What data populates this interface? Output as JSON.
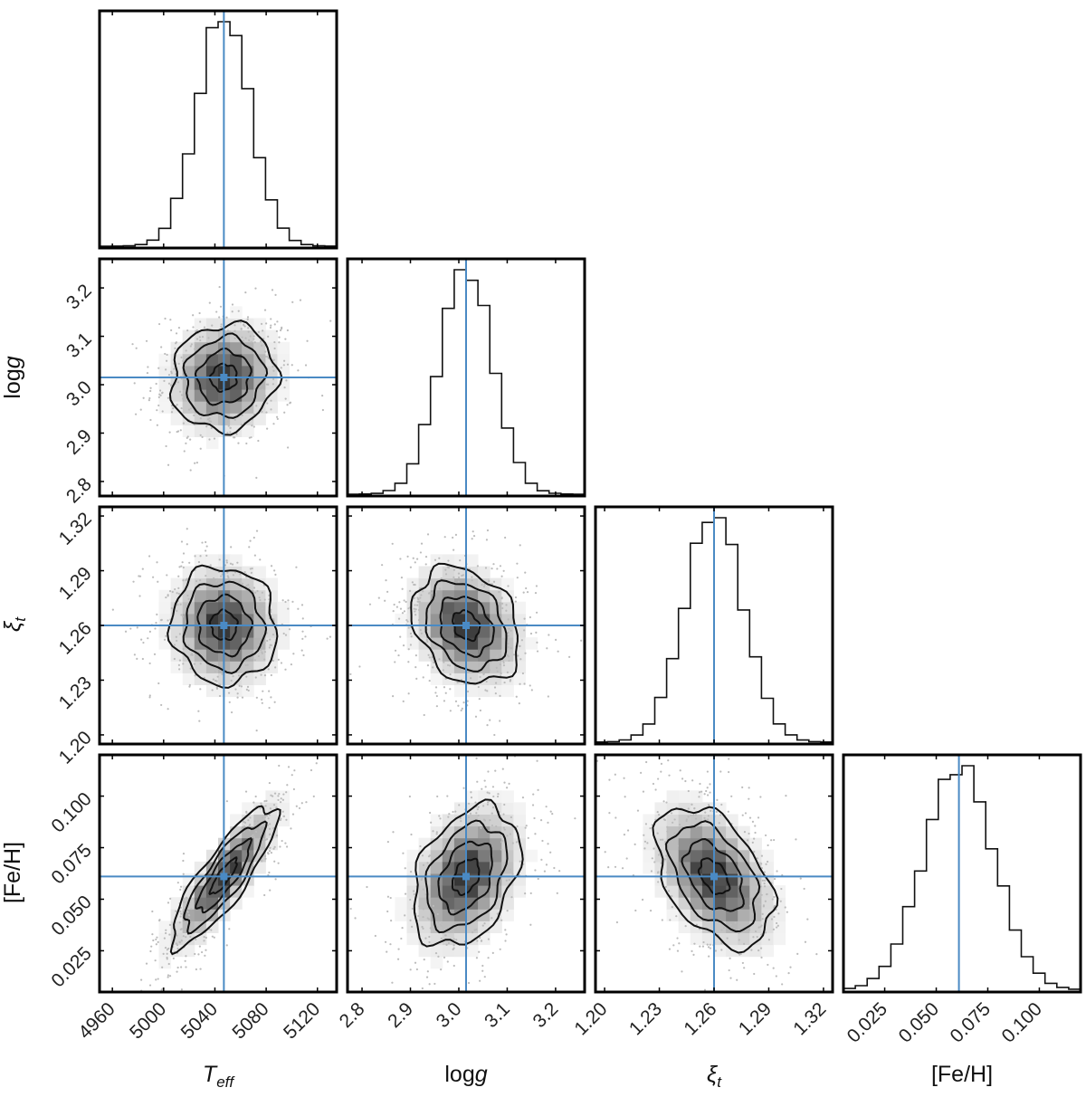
{
  "chart_data": {
    "type": "corner",
    "parameters": [
      {
        "key": "teff",
        "label": "T",
        "label_sub": "eff",
        "label_italic": true,
        "ticks": [
          4960,
          5000,
          5040,
          5080,
          5120
        ],
        "tick_labels": [
          "4960",
          "5000",
          "5040",
          "5080",
          "5120"
        ],
        "range": [
          4950,
          5135
        ],
        "truth": 5047,
        "mean": 5047,
        "sigma": 20.5
      },
      {
        "key": "logg",
        "label": "log",
        "label_suffix": "g",
        "label_italic": false,
        "ticks": [
          2.8,
          2.9,
          3.0,
          3.1,
          3.2
        ],
        "tick_labels": [
          "2.8",
          "2.9",
          "3.0",
          "3.1",
          "3.2"
        ],
        "range": [
          2.77,
          3.26
        ],
        "truth": 3.015,
        "mean": 3.015,
        "sigma": 0.055
      },
      {
        "key": "xi",
        "label": "ξ",
        "label_sub": "t",
        "label_italic": true,
        "ticks": [
          1.2,
          1.23,
          1.26,
          1.29,
          1.32
        ],
        "tick_labels": [
          "1.20",
          "1.23",
          "1.26",
          "1.29",
          "1.32"
        ],
        "range": [
          1.195,
          1.325
        ],
        "truth": 1.26,
        "mean": 1.26,
        "sigma": 0.016
      },
      {
        "key": "feh",
        "label": "[Fe/H]",
        "label_italic": false,
        "ticks": [
          0.025,
          0.05,
          0.075,
          0.1
        ],
        "tick_labels": [
          "0.025",
          "0.050",
          "0.075",
          "0.100"
        ],
        "range": [
          0.005,
          0.12
        ],
        "truth": 0.061,
        "mean": 0.061,
        "sigma": 0.017
      }
    ],
    "correlations": {
      "1-0": 0.08,
      "2-0": -0.05,
      "2-1": -0.25,
      "3-0": 0.85,
      "3-1": 0.35,
      "3-2": -0.45
    },
    "truth_color": "#4a8ac4",
    "histogram_bins": 20,
    "contour_levels_sigma": [
      0.5,
      1.0,
      1.5,
      2.0
    ],
    "grid": false
  }
}
